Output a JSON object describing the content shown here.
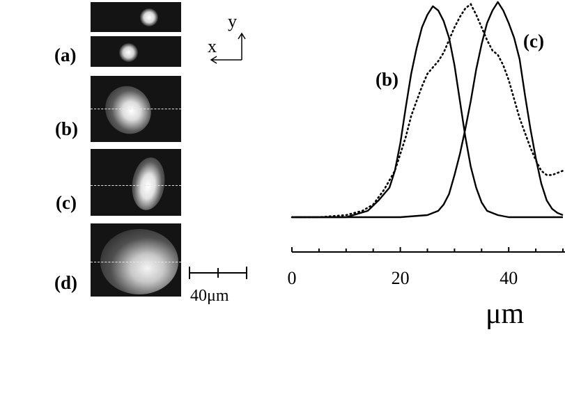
{
  "panels": [
    {
      "label": "(a)"
    },
    {
      "label": "(b)"
    },
    {
      "label": "(c)"
    },
    {
      "label": "(d)"
    }
  ],
  "axes_glyph": {
    "x_label": "x",
    "y_label": "y"
  },
  "scale_bar": {
    "label": "40μm",
    "length_um": 40
  },
  "chart_data": {
    "type": "line",
    "title": "",
    "xlabel": "μm",
    "ylabel": "",
    "xlim": [
      0,
      50
    ],
    "x_ticks": [
      0,
      20,
      40
    ],
    "x_tick_labels": [
      "0",
      "20",
      "40"
    ],
    "grid": false,
    "series": [
      {
        "name": "(b)",
        "style": "solid",
        "x": [
          0,
          5,
          10,
          14,
          16,
          18,
          19,
          20,
          21,
          22,
          23,
          24,
          25,
          26,
          27,
          28,
          29,
          30,
          31,
          32,
          33,
          34,
          35,
          36,
          38,
          40,
          45,
          50
        ],
        "y": [
          0.0,
          0.0,
          0.0,
          0.03,
          0.08,
          0.14,
          0.22,
          0.35,
          0.52,
          0.68,
          0.8,
          0.9,
          0.96,
          1.0,
          0.98,
          0.93,
          0.85,
          0.72,
          0.55,
          0.38,
          0.24,
          0.14,
          0.07,
          0.03,
          0.01,
          0.0,
          0.0,
          0.0
        ]
      },
      {
        "name": "(c)",
        "style": "solid",
        "x": [
          0,
          10,
          20,
          25,
          27,
          28,
          29,
          30,
          31,
          32,
          33,
          34,
          35,
          36,
          37,
          38,
          39,
          40,
          41,
          42,
          43,
          44,
          45,
          46,
          47,
          48,
          49,
          50
        ],
        "y": [
          0.0,
          0.0,
          0.0,
          0.01,
          0.03,
          0.06,
          0.11,
          0.2,
          0.3,
          0.42,
          0.55,
          0.7,
          0.82,
          0.92,
          0.98,
          1.02,
          0.98,
          0.92,
          0.85,
          0.75,
          0.58,
          0.42,
          0.28,
          0.16,
          0.08,
          0.04,
          0.02,
          0.01
        ]
      },
      {
        "name": "",
        "style": "dotted",
        "x": [
          0,
          5,
          10,
          13,
          15,
          17,
          19,
          20,
          21,
          22,
          23,
          24,
          25,
          26,
          27,
          28,
          29,
          30,
          31,
          32,
          33,
          34,
          35,
          36,
          37,
          38,
          39,
          40,
          41,
          42,
          43,
          44,
          45,
          46,
          47,
          48,
          49,
          50
        ],
        "y": [
          0.0,
          0.0,
          0.01,
          0.03,
          0.06,
          0.13,
          0.22,
          0.3,
          0.38,
          0.48,
          0.55,
          0.62,
          0.68,
          0.71,
          0.74,
          0.78,
          0.84,
          0.9,
          0.95,
          0.99,
          1.01,
          0.96,
          0.9,
          0.84,
          0.79,
          0.77,
          0.72,
          0.65,
          0.56,
          0.47,
          0.4,
          0.33,
          0.27,
          0.22,
          0.2,
          0.2,
          0.21,
          0.22
        ]
      }
    ],
    "annotations": [
      "(b)",
      "(c)"
    ]
  }
}
